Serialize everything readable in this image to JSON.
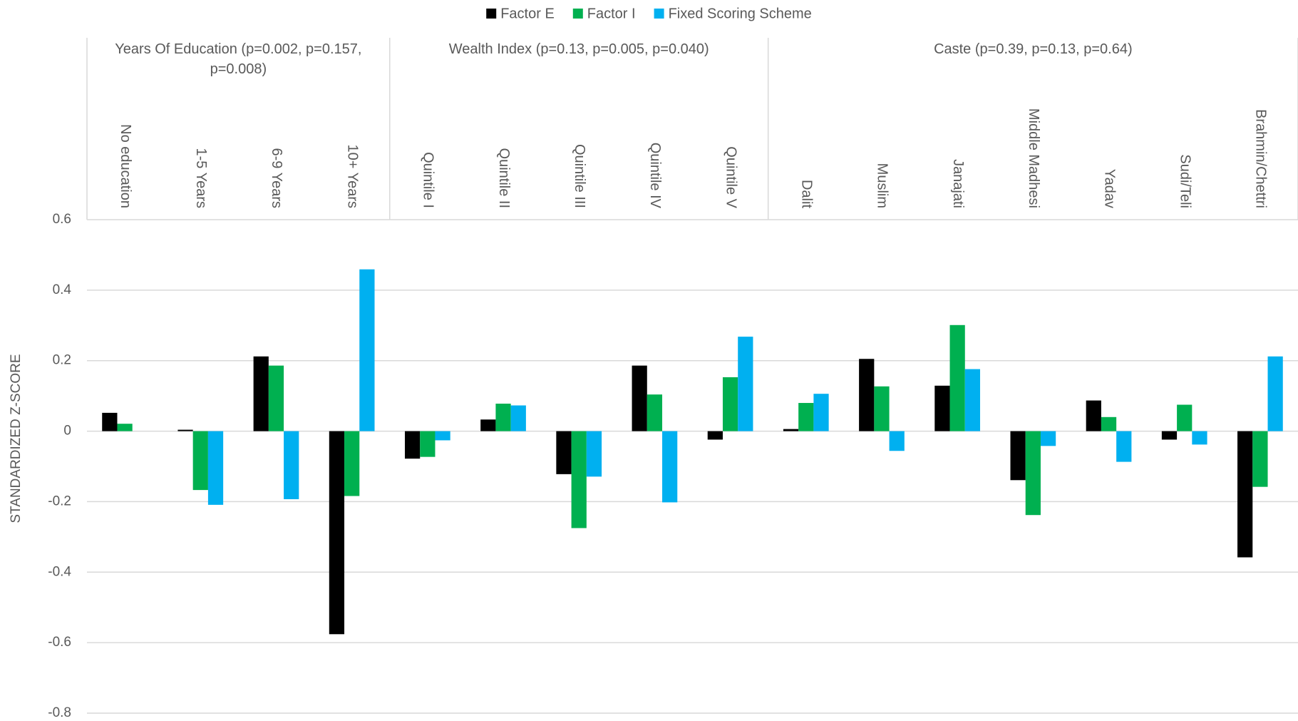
{
  "chart_data": {
    "type": "bar",
    "y_label": "STANDARDIZED Z-SCORE",
    "groups": [
      {
        "label": "Years Of Education (p=0.002, p=0.157, p=0.008)",
        "categories": [
          "No education",
          "1-5 Years",
          "6-9 Years",
          "10+ Years"
        ]
      },
      {
        "label": "Wealth Index (p=0.13, p=0.005, p=0.040)",
        "categories": [
          "Quintile I",
          "Quintile II",
          "Quintile III",
          "Quintile IV",
          "Quintile V"
        ]
      },
      {
        "label": "Caste (p=0.39, p=0.13, p=0.64)",
        "categories": [
          "Dalit",
          "Muslim",
          "Janajati",
          "Middle Madhesi",
          "Yadav",
          "Sudi/Teli",
          "Brahmin/Chettri"
        ]
      }
    ],
    "series": [
      {
        "name": "Factor E",
        "color": "#000000",
        "values": [
          0.052,
          0.004,
          0.212,
          -0.576,
          -0.078,
          0.033,
          -0.122,
          0.186,
          -0.024,
          0.006,
          0.205,
          0.129,
          -0.139,
          0.087,
          -0.024,
          -0.358
        ]
      },
      {
        "name": "Factor I",
        "color": "#00b050",
        "values": [
          0.021,
          -0.167,
          0.186,
          -0.184,
          -0.073,
          0.078,
          -0.275,
          0.104,
          0.153,
          0.08,
          0.127,
          0.301,
          -0.238,
          0.04,
          0.075,
          -0.158
        ]
      },
      {
        "name": "Fixed Scoring Scheme",
        "color": "#00b0f0",
        "values": [
          0,
          -0.209,
          -0.193,
          0.459,
          -0.026,
          0.073,
          -0.129,
          -0.202,
          0.268,
          0.106,
          -0.056,
          0.176,
          -0.042,
          -0.087,
          -0.038,
          0.212
        ]
      }
    ],
    "ylim": [
      -0.8,
      0.6
    ],
    "yticks": [
      -0.8,
      -0.6,
      -0.4,
      -0.2,
      0,
      0.2,
      0.4,
      0.6
    ],
    "grid": true
  }
}
